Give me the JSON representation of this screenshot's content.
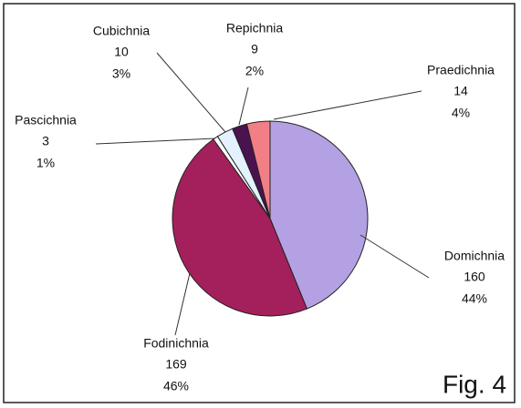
{
  "chart_data": {
    "type": "pie",
    "categories": [
      "Domichnia",
      "Fodinichnia",
      "Pascichnia",
      "Cubichnia",
      "Repichnia",
      "Praedichnia"
    ],
    "values": [
      160,
      169,
      3,
      10,
      9,
      14
    ],
    "percent_labels": [
      "44%",
      "46%",
      "1%",
      "3%",
      "2%",
      "4%"
    ],
    "colors": [
      "#b3a1e3",
      "#a3205c",
      "#ffffff",
      "#e4f2ff",
      "#4b1250",
      "#f27f86"
    ],
    "figure_label": "Fig. 4"
  }
}
